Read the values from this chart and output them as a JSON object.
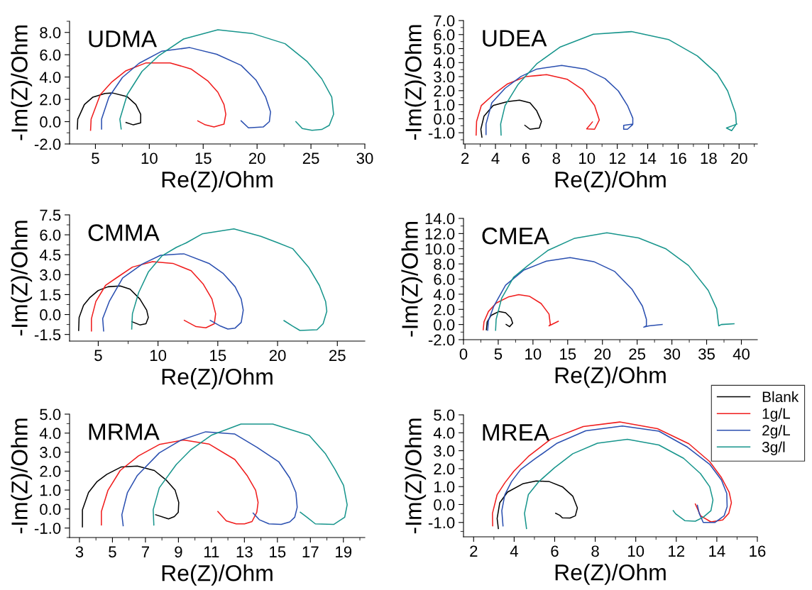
{
  "chart_data": [
    {
      "type": "line",
      "title": "UDMA",
      "xlabel": "Re(Z)/Ohm",
      "ylabel": "-Im(Z)/Ohm",
      "xlim": [
        2.6,
        30
      ],
      "ylim": [
        -2.0,
        9.0
      ],
      "xticks": [
        5,
        10,
        15,
        20,
        25,
        30
      ],
      "yticks": [
        {
          "value": -2,
          "label": "-2.0"
        },
        {
          "value": 0,
          "label": "0.0"
        },
        {
          "value": 2,
          "label": "2.0"
        },
        {
          "value": 4,
          "label": "4.0"
        },
        {
          "value": 6,
          "label": "6.0"
        },
        {
          "value": 8,
          "label": "8.0"
        }
      ],
      "grid": false,
      "legend": false,
      "series": [
        {
          "color": "#000000",
          "x": [
            3.32,
            3.36,
            3.98,
            4.77,
            5.9,
            6.6,
            7.95,
            8.75,
            9.2,
            9.2,
            8.52,
            7.84
          ],
          "values": [
            -0.66,
            0.22,
            1.54,
            2.2,
            2.53,
            2.57,
            2.24,
            1.54,
            0.66,
            -0.11,
            -0.29,
            -0.07
          ]
        },
        {
          "color": "#f01c1c",
          "x": [
            4.55,
            4.6,
            5.45,
            6.48,
            7.84,
            9.7,
            11.93,
            13.86,
            15.45,
            16.36,
            16.93,
            17.1,
            16.93,
            16.0,
            15.2,
            14.5
          ],
          "values": [
            -0.77,
            0.22,
            2.42,
            3.52,
            4.57,
            5.27,
            5.27,
            4.73,
            3.63,
            2.64,
            1.54,
            0.66,
            -0.22,
            -0.48,
            -0.29,
            0.07
          ]
        },
        {
          "color": "#2a4fb0",
          "x": [
            5.57,
            5.57,
            6.25,
            7.5,
            9.05,
            11.14,
            13.75,
            16.25,
            18.52,
            19.89,
            20.8,
            21.25,
            21.14,
            20.57,
            19.2,
            18.52
          ],
          "values": [
            -0.66,
            0.22,
            2.2,
            3.96,
            5.23,
            6.31,
            6.64,
            6.04,
            5.05,
            3.74,
            2.2,
            0.88,
            0.0,
            -0.48,
            -0.55,
            0.07
          ]
        },
        {
          "color": "#17958c",
          "x": [
            7.39,
            7.27,
            7.95,
            9.32,
            10.9,
            13.18,
            16.36,
            19.55,
            22.6,
            24.66,
            26.0,
            26.93,
            27.1,
            26.7,
            26.0,
            25.1,
            24.2,
            23.6
          ],
          "values": [
            -0.66,
            0.22,
            2.42,
            4.5,
            5.93,
            7.41,
            8.24,
            7.91,
            6.99,
            5.38,
            3.85,
            2.2,
            0.66,
            -0.33,
            -0.7,
            -0.77,
            -0.62,
            0.0
          ]
        }
      ]
    },
    {
      "type": "line",
      "title": "UDEA",
      "xlabel": "Re(Z)/Ohm",
      "ylabel": "-Im(Z)/Ohm",
      "xlim": [
        1.9,
        21.2
      ],
      "ylim": [
        -1.8,
        7.0
      ],
      "xticks": [
        2,
        4,
        6,
        8,
        10,
        12,
        14,
        16,
        18,
        20
      ],
      "yticks": [
        {
          "value": -1,
          "label": "-1.0"
        },
        {
          "value": 0,
          "label": "0.0"
        },
        {
          "value": 1,
          "label": "1.0"
        },
        {
          "value": 2,
          "label": "2.0"
        },
        {
          "value": 3,
          "label": "3.0"
        },
        {
          "value": 4,
          "label": "4.0"
        },
        {
          "value": 5,
          "label": "5.0"
        },
        {
          "value": 6,
          "label": "6.0"
        },
        {
          "value": 7,
          "label": "7.0"
        }
      ],
      "grid": false,
      "legend": false,
      "series": [
        {
          "color": "#000000",
          "x": [
            3.11,
            3.04,
            3.25,
            3.85,
            4.8,
            5.58,
            6.27,
            6.71,
            7.02,
            6.88,
            6.27,
            5.93
          ],
          "values": [
            -1.32,
            -0.75,
            0.19,
            0.94,
            1.22,
            1.32,
            1.13,
            0.56,
            -0.19,
            -0.66,
            -0.75,
            -0.47
          ]
        },
        {
          "color": "#f01c1c",
          "x": [
            2.73,
            2.76,
            3.07,
            3.94,
            4.8,
            6.01,
            7.36,
            8.7,
            9.73,
            10.51,
            10.82,
            10.51,
            9.99,
            10.37
          ],
          "values": [
            -1.17,
            -0.19,
            0.94,
            1.79,
            2.49,
            3.01,
            3.14,
            2.82,
            2.07,
            0.94,
            -0.09,
            -0.75,
            -0.72,
            -0.23
          ]
        },
        {
          "color": "#2a4fb0",
          "x": [
            3.38,
            3.38,
            3.76,
            4.63,
            5.67,
            6.71,
            8.35,
            9.91,
            11.2,
            12.07,
            12.67,
            13.02,
            13.02,
            12.42,
            12.42,
            12.67,
            13.0
          ],
          "values": [
            -1.13,
            -0.38,
            1.13,
            2.17,
            3.01,
            3.54,
            3.8,
            3.54,
            2.86,
            1.98,
            0.94,
            0.04,
            -0.38,
            -0.47,
            -0.75,
            -0.75,
            -0.43
          ]
        },
        {
          "color": "#17958c",
          "x": [
            4.37,
            4.34,
            4.63,
            5.49,
            6.71,
            8.26,
            10.43,
            12.93,
            15.36,
            17.26,
            18.56,
            19.25,
            19.77,
            19.82,
            19.51,
            19.17,
            19.86
          ],
          "values": [
            -1.17,
            -0.38,
            0.94,
            2.45,
            3.92,
            5.12,
            6.03,
            6.21,
            5.65,
            4.48,
            3.2,
            1.98,
            0.38,
            -0.38,
            -0.85,
            -0.66,
            -0.38
          ]
        }
      ]
    },
    {
      "type": "line",
      "title": "CMMA",
      "xlabel": "Re(Z)/Ohm",
      "ylabel": "-Im(Z)/Ohm",
      "xlim": [
        2.6,
        27.3
      ],
      "ylim": [
        -2.0,
        7.5
      ],
      "xticks": [
        5,
        10,
        15,
        20,
        25
      ],
      "yticks": [
        {
          "value": -1.5,
          "label": "-1.5"
        },
        {
          "value": 0,
          "label": "0.0"
        },
        {
          "value": 1.5,
          "label": "1.5"
        },
        {
          "value": 3,
          "label": "3.0"
        },
        {
          "value": 4.5,
          "label": "4.5"
        },
        {
          "value": 6,
          "label": "6.0"
        },
        {
          "value": 7.5,
          "label": "7.5"
        }
      ],
      "grid": false,
      "legend": false,
      "series": [
        {
          "color": "#000000",
          "x": [
            3.36,
            3.4,
            3.77,
            4.28,
            5.0,
            5.82,
            6.84,
            7.66,
            8.48,
            9.05,
            9.19,
            8.99,
            8.48,
            7.82
          ],
          "values": [
            -1.2,
            -0.22,
            0.7,
            1.26,
            1.81,
            2.09,
            2.15,
            1.91,
            1.17,
            0.33,
            -0.22,
            -0.69,
            -0.78,
            -0.54
          ]
        },
        {
          "color": "#f01c1c",
          "x": [
            4.43,
            4.43,
            4.8,
            5.61,
            6.64,
            7.86,
            9.54,
            11.24,
            12.77,
            13.79,
            14.51,
            14.82,
            14.71,
            14.0,
            13.18,
            12.2
          ],
          "values": [
            -1.24,
            -0.31,
            0.98,
            2.19,
            2.83,
            3.57,
            3.98,
            3.85,
            3.3,
            2.28,
            1.17,
            0.06,
            -0.69,
            -1.0,
            -0.91,
            -0.44
          ]
        },
        {
          "color": "#2a4fb0",
          "x": [
            5.45,
            5.37,
            5.92,
            7.04,
            8.68,
            10.21,
            12.16,
            14.3,
            15.43,
            16.45,
            16.96,
            17.13,
            16.96,
            16.45,
            15.84,
            15.22,
            14.37
          ],
          "values": [
            -1.24,
            -0.31,
            0.98,
            2.74,
            3.8,
            4.46,
            4.57,
            3.83,
            3.11,
            2.09,
            1.17,
            0.33,
            -0.59,
            -1.02,
            -1.09,
            -0.87,
            -0.44
          ]
        },
        {
          "color": "#17958c",
          "x": [
            7.8,
            7.86,
            8.37,
            9.19,
            10.32,
            11.54,
            12.36,
            13.69,
            16.35,
            18.6,
            19.93,
            21.26,
            22.59,
            23.5,
            24.02,
            24.12,
            23.81,
            23.3,
            21.87,
            21.26,
            20.54
          ],
          "values": [
            -1.09,
            0.06,
            1.63,
            3.2,
            4.41,
            5.06,
            5.39,
            6.07,
            6.44,
            5.89,
            5.43,
            4.96,
            3.57,
            2.19,
            0.98,
            0.24,
            -0.69,
            -1.15,
            -1.2,
            -0.87,
            -0.46
          ]
        }
      ]
    },
    {
      "type": "line",
      "title": "CMEA",
      "xlabel": "Re(Z)/Ohm",
      "ylabel": "-Im(Z)/Ohm",
      "xlim": [
        0,
        42.3
      ],
      "ylim": [
        -2.0,
        14.0
      ],
      "xticks": [
        0,
        5,
        10,
        15,
        20,
        25,
        30,
        35,
        40
      ],
      "yticks": [
        {
          "value": -2,
          "label": "-2.0"
        },
        {
          "value": 0,
          "label": "0.0"
        },
        {
          "value": 2,
          "label": "2.0"
        },
        {
          "value": 4,
          "label": "4.0"
        },
        {
          "value": 6,
          "label": "6.0"
        },
        {
          "value": 8,
          "label": "8.0"
        },
        {
          "value": 10,
          "label": "10.0"
        },
        {
          "value": 12,
          "label": "12.0"
        },
        {
          "value": 14,
          "label": "14.0"
        }
      ],
      "grid": false,
      "legend": false,
      "series": [
        {
          "color": "#000000",
          "x": [
            3.3,
            3.41,
            3.98,
            5.11,
            6.06,
            6.82,
            7.08,
            6.63,
            6.14
          ],
          "values": [
            -0.69,
            0.35,
            1.21,
            1.73,
            1.56,
            0.87,
            0.17,
            -0.28,
            0.0
          ]
        },
        {
          "color": "#f01c1c",
          "x": [
            2.84,
            2.95,
            3.6,
            4.73,
            6.44,
            7.95,
            9.47,
            11.17,
            12.31,
            12.5,
            12.31,
            13.64
          ],
          "values": [
            -0.69,
            0.35,
            1.73,
            2.84,
            3.63,
            3.94,
            3.74,
            2.77,
            1.38,
            0.0,
            -0.17,
            0.42
          ]
        },
        {
          "color": "#2a4fb0",
          "x": [
            3.48,
            3.6,
            4.36,
            6.06,
            8.71,
            11.93,
            15.34,
            18.75,
            21.78,
            24.24,
            25.76,
            26.33,
            26.33,
            25.95,
            26.7,
            28.6
          ],
          "values": [
            -0.76,
            0.52,
            2.42,
            5.19,
            7.2,
            8.37,
            8.82,
            8.3,
            6.99,
            4.67,
            2.42,
            0.69,
            -0.17,
            -0.35,
            -0.17,
            0.0
          ]
        },
        {
          "color": "#17958c",
          "x": [
            4.62,
            4.7,
            5.49,
            7.2,
            9.28,
            12.12,
            15.91,
            20.64,
            25.19,
            29.17,
            32.39,
            35.23,
            36.44,
            36.67,
            36.74,
            37.12,
            38.94
          ],
          "values": [
            -0.76,
            0.69,
            3.46,
            6.23,
            7.79,
            9.76,
            11.35,
            12.11,
            11.42,
            9.97,
            7.79,
            4.5,
            2.08,
            0.35,
            -0.17,
            0.0,
            0.1
          ]
        }
      ]
    },
    {
      "type": "line",
      "title": "MRMA",
      "xlabel": "Re(Z)/Ohm",
      "ylabel": "-Im(Z)/Ohm",
      "xlim": [
        2.4,
        20.3
      ],
      "ylim": [
        -1.5,
        5.0
      ],
      "xticks": [
        3,
        5,
        7,
        9,
        11,
        13,
        15,
        17,
        19
      ],
      "yticks": [
        {
          "value": -1,
          "label": "-1.0"
        },
        {
          "value": 0,
          "label": "0.0"
        },
        {
          "value": 1,
          "label": "1.0"
        },
        {
          "value": 2,
          "label": "2.0"
        },
        {
          "value": 3,
          "label": "3.0"
        },
        {
          "value": 4,
          "label": "4.0"
        },
        {
          "value": 5,
          "label": "5.0"
        }
      ],
      "grid": false,
      "legend": false,
      "series": [
        {
          "color": "#000000",
          "x": [
            3.18,
            3.18,
            3.55,
            4.07,
            4.66,
            5.54,
            6.51,
            7.54,
            8.28,
            8.8,
            9.02,
            8.99,
            8.75,
            8.4,
            7.62
          ],
          "values": [
            -0.94,
            -0.04,
            0.87,
            1.45,
            1.83,
            2.22,
            2.26,
            2.03,
            1.51,
            0.99,
            0.35,
            -0.17,
            -0.4,
            -0.52,
            -0.3
          ]
        },
        {
          "color": "#f01c1c",
          "x": [
            4.33,
            4.33,
            4.73,
            5.47,
            6.58,
            7.84,
            9.32,
            10.87,
            12.42,
            13.16,
            13.68,
            13.83,
            13.75,
            13.46,
            13.01,
            12.5,
            11.9,
            11.39
          ],
          "values": [
            -0.84,
            -0.13,
            0.99,
            2.03,
            2.8,
            3.4,
            3.64,
            3.42,
            2.61,
            1.77,
            0.99,
            0.35,
            -0.17,
            -0.66,
            -0.78,
            -0.78,
            -0.62,
            -0.13
          ]
        },
        {
          "color": "#2a4fb0",
          "x": [
            5.65,
            5.57,
            5.91,
            6.51,
            7.84,
            9.17,
            10.65,
            12.42,
            13.75,
            15.09,
            15.75,
            16.12,
            16.2,
            16.05,
            15.75,
            15.23,
            14.49,
            13.9,
            13.53
          ],
          "values": [
            -0.88,
            -0.3,
            0.87,
            1.77,
            2.96,
            3.64,
            4.07,
            3.95,
            3.26,
            2.48,
            1.64,
            0.87,
            0.09,
            -0.43,
            -0.68,
            -0.81,
            -0.78,
            -0.56,
            -0.21
          ]
        },
        {
          "color": "#17958c",
          "x": [
            7.51,
            7.47,
            7.84,
            8.87,
            9.76,
            11.02,
            12.79,
            14.72,
            16.93,
            17.9,
            18.49,
            19.01,
            19.23,
            19.08,
            18.41,
            17.3,
            16.79,
            16.39
          ],
          "values": [
            -0.84,
            -0.04,
            1.12,
            2.35,
            3.13,
            3.9,
            4.48,
            4.48,
            3.88,
            2.93,
            2.09,
            1.25,
            0.22,
            -0.43,
            -0.81,
            -0.78,
            -0.43,
            -0.17
          ]
        }
      ]
    },
    {
      "type": "line",
      "title": "MREA",
      "xlabel": "Re(Z)/Ohm",
      "ylabel": "-Im(Z)/Ohm",
      "xlim": [
        1.5,
        16
      ],
      "ylim": [
        -1.8,
        5.0
      ],
      "xticks": [
        2,
        4,
        6,
        8,
        10,
        12,
        14,
        16
      ],
      "yticks": [
        {
          "value": -1,
          "label": "-1.0"
        },
        {
          "value": 0,
          "label": "0.0"
        },
        {
          "value": 1,
          "label": "1.0"
        },
        {
          "value": 2,
          "label": "2.0"
        },
        {
          "value": 3,
          "label": "3.0"
        },
        {
          "value": 4,
          "label": "4.0"
        },
        {
          "value": 5,
          "label": "5.0"
        }
      ],
      "grid": false,
      "legend": "top right",
      "series": [
        {
          "name": "Blank",
          "color": "#000000",
          "x": [
            3.22,
            3.16,
            3.29,
            3.67,
            4.45,
            5.09,
            5.73,
            6.38,
            6.89,
            7.12,
            7.02,
            6.76,
            6.38,
            6.25,
            6.05
          ],
          "values": [
            -1.34,
            -0.78,
            0.1,
            0.69,
            1.17,
            1.31,
            1.28,
            0.99,
            0.47,
            -0.19,
            -0.63,
            -0.75,
            -0.74,
            -0.6,
            -0.49
          ]
        },
        {
          "name": "1g/L",
          "color": "#f01c1c",
          "x": [
            2.94,
            2.93,
            3.16,
            3.54,
            3.99,
            4.7,
            5.8,
            7.41,
            9.21,
            11.07,
            12.62,
            13.65,
            14.23,
            14.61,
            14.72,
            14.59,
            14.29,
            13.71,
            13.2,
            12.94
          ],
          "values": [
            -1.19,
            -0.49,
            0.55,
            1.21,
            1.87,
            2.68,
            3.64,
            4.35,
            4.6,
            4.23,
            3.39,
            2.39,
            1.5,
            0.69,
            0.1,
            -0.49,
            -0.86,
            -0.97,
            -0.63,
            0.03
          ]
        },
        {
          "name": "2g/L",
          "color": "#2a4fb0",
          "x": [
            3.45,
            3.39,
            3.54,
            3.87,
            4.32,
            5.02,
            6.12,
            7.53,
            9.34,
            11.14,
            12.55,
            13.65,
            14.23,
            14.49,
            14.51,
            14.36,
            13.9,
            13.33,
            13.13,
            13.04
          ],
          "values": [
            -1.19,
            -0.34,
            0.55,
            1.28,
            1.95,
            2.54,
            3.42,
            4.11,
            4.38,
            4.09,
            3.2,
            2.24,
            1.36,
            0.62,
            -0.12,
            -0.63,
            -1.0,
            -1.0,
            -0.49,
            -0.04
          ]
        },
        {
          "name": "3g/l",
          "color": "#17958c",
          "x": [
            4.61,
            4.51,
            4.7,
            5.22,
            5.99,
            6.89,
            8.11,
            9.59,
            11.14,
            12.36,
            13.19,
            13.65,
            13.81,
            13.71,
            13.33,
            12.94,
            12.42,
            11.97,
            11.85
          ],
          "values": [
            -1.34,
            -0.49,
            0.55,
            1.28,
            2.05,
            2.83,
            3.42,
            3.64,
            3.32,
            2.58,
            1.73,
            0.99,
            0.25,
            -0.34,
            -0.71,
            -0.93,
            -0.9,
            -0.52,
            -0.34
          ]
        }
      ]
    }
  ]
}
